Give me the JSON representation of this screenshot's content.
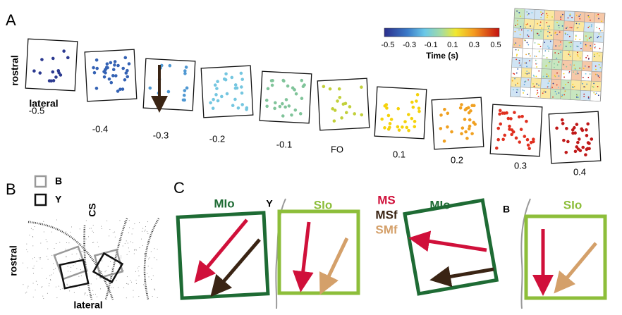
{
  "panel_a": {
    "label": "A",
    "rostral": "rostral",
    "lateral": "lateral",
    "frames": [
      "-0.5",
      "-0.4",
      "-0.3",
      "-0.2",
      "-0.1",
      "FO",
      "0.1",
      "0.2",
      "0.3",
      "0.4"
    ],
    "colorbar": {
      "ticks": [
        "-0.5",
        "-0.3",
        "-0.1",
        "0.1",
        "0.3",
        "0.5"
      ],
      "title": "Time (s)"
    }
  },
  "panel_b": {
    "label": "B",
    "legend": [
      "B",
      "Y"
    ],
    "cs": "CS",
    "rostral": "rostral",
    "lateral": "lateral"
  },
  "panel_c": {
    "label": "C",
    "left": {
      "mio": "MIo",
      "border": "Y",
      "sio": "SIo"
    },
    "legend": [
      "MS",
      "MSf",
      "SMf"
    ],
    "right": {
      "mio": "MIo",
      "border": "B",
      "sio": "SIo"
    }
  }
}
